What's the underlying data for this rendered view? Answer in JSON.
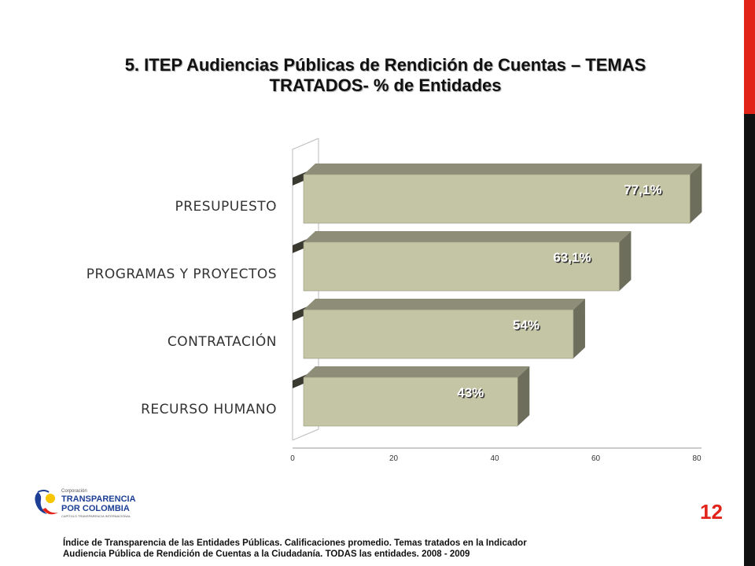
{
  "slide": {
    "title_line1": "5. ITEP Audiencias Públicas de Rendición de Cuentas – TEMAS",
    "title_line2": "TRATADOS- % de Entidades",
    "page_number": "12",
    "footer_line1": "Índice de Transparencia de las Entidades Públicas. Calificaciones promedio. Temas tratados en la Indicador",
    "footer_line2": "Audiencia Pública de Rendición de Cuentas a la Ciudadanía. TODAS las entidades. 2008 - 2009",
    "logo": {
      "small_text": "Corporación",
      "line1": "TRANSPARENCIA",
      "line2": "POR COLOMBIA",
      "tagline": "CAPÍTULO TRANSPARENCIA INTERNACIONAL"
    },
    "colors": {
      "accent_red": "#e2231a",
      "bar_face": "#c4c5a5",
      "bar_side": "#6e6e5c",
      "bar_top": "#8e8e78"
    }
  },
  "chart_data": {
    "type": "bar",
    "orientation": "horizontal",
    "style": "3d",
    "categories": [
      "PRESUPUESTO",
      "PROGRAMAS Y PROYECTOS",
      "CONTRATACIÓN",
      "RECURSO HUMANO"
    ],
    "values": [
      77.1,
      63.1,
      54,
      43
    ],
    "data_labels": [
      "77,1%",
      "63,1%",
      "54%",
      "43%"
    ],
    "xlim": [
      0,
      80
    ],
    "xticks": [
      "0",
      "20",
      "40",
      "60",
      "80"
    ],
    "title": "",
    "xlabel": "",
    "ylabel": "",
    "grid": false,
    "legend": "none"
  }
}
